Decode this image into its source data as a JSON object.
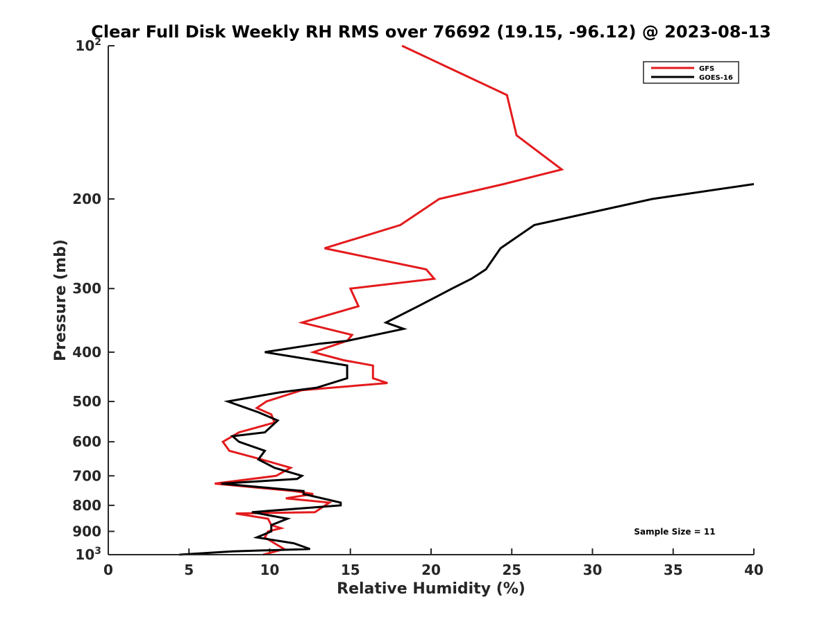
{
  "chart_data": {
    "type": "line",
    "title": "Clear Full Disk Weekly RH RMS over 76692 (19.15, -96.12) @ 2023-08-13",
    "xlabel": "Relative Humidity (%)",
    "ylabel": "Pressure (mb)",
    "xlim": [
      0,
      40
    ],
    "ylim": [
      1000,
      100
    ],
    "yscale": "log",
    "x_ticks": [
      0,
      5,
      10,
      15,
      20,
      25,
      30,
      35,
      40
    ],
    "y_ticks": [
      {
        "value": 100,
        "label": "10",
        "sup": "2"
      },
      {
        "value": 200,
        "label": "200"
      },
      {
        "value": 300,
        "label": "300"
      },
      {
        "value": 400,
        "label": "400"
      },
      {
        "value": 500,
        "label": "500"
      },
      {
        "value": 600,
        "label": "600"
      },
      {
        "value": 700,
        "label": "700"
      },
      {
        "value": 800,
        "label": "800"
      },
      {
        "value": 900,
        "label": "900"
      },
      {
        "value": 1000,
        "label": "10",
        "sup": "3"
      }
    ],
    "legend_position": "top-right",
    "series": [
      {
        "name": "GFS",
        "color": "#e31a1c",
        "points": [
          [
            18.2,
            100
          ],
          [
            24.7,
            125
          ],
          [
            25.3,
            150
          ],
          [
            28.1,
            175
          ],
          [
            24.5,
            187
          ],
          [
            20.5,
            200
          ],
          [
            18.1,
            225
          ],
          [
            13.4,
            250
          ],
          [
            19.7,
            275
          ],
          [
            20.2,
            287
          ],
          [
            15.0,
            300
          ],
          [
            15.5,
            325
          ],
          [
            12.0,
            350
          ],
          [
            15.1,
            370
          ],
          [
            14.8,
            380
          ],
          [
            12.7,
            400
          ],
          [
            14.6,
            415
          ],
          [
            16.4,
            425
          ],
          [
            16.4,
            450
          ],
          [
            17.3,
            460
          ],
          [
            12.0,
            475
          ],
          [
            9.8,
            500
          ],
          [
            9.2,
            515
          ],
          [
            10.1,
            530
          ],
          [
            10.3,
            550
          ],
          [
            8.1,
            575
          ],
          [
            7.1,
            600
          ],
          [
            7.5,
            625
          ],
          [
            9.5,
            650
          ],
          [
            11.3,
            675
          ],
          [
            10.4,
            700
          ],
          [
            6.6,
            725
          ],
          [
            11.5,
            750
          ],
          [
            12.7,
            760
          ],
          [
            11.0,
            775
          ],
          [
            13.7,
            790
          ],
          [
            12.8,
            825
          ],
          [
            7.9,
            830
          ],
          [
            9.9,
            850
          ],
          [
            10.1,
            875
          ],
          [
            10.7,
            887
          ],
          [
            9.9,
            900
          ],
          [
            9.7,
            925
          ],
          [
            10.3,
            950
          ],
          [
            10.9,
            975
          ],
          [
            9.6,
            1000
          ]
        ]
      },
      {
        "name": "GOES-16",
        "color": "#000000",
        "points": [
          [
            40.0,
            187
          ],
          [
            33.7,
            200
          ],
          [
            26.4,
            225
          ],
          [
            24.3,
            250
          ],
          [
            23.4,
            275
          ],
          [
            22.5,
            287
          ],
          [
            21.3,
            300
          ],
          [
            19.2,
            325
          ],
          [
            17.2,
            350
          ],
          [
            18.3,
            360
          ],
          [
            14.8,
            380
          ],
          [
            13.1,
            385
          ],
          [
            9.7,
            400
          ],
          [
            14.8,
            425
          ],
          [
            14.8,
            450
          ],
          [
            12.9,
            470
          ],
          [
            10.6,
            480
          ],
          [
            7.4,
            500
          ],
          [
            9.3,
            525
          ],
          [
            10.5,
            545
          ],
          [
            9.7,
            575
          ],
          [
            7.7,
            585
          ],
          [
            8.1,
            600
          ],
          [
            9.7,
            625
          ],
          [
            9.3,
            650
          ],
          [
            10.3,
            675
          ],
          [
            12.0,
            700
          ],
          [
            11.7,
            710
          ],
          [
            7.0,
            725
          ],
          [
            12.1,
            750
          ],
          [
            12.1,
            760
          ],
          [
            14.4,
            790
          ],
          [
            14.4,
            800
          ],
          [
            8.9,
            825
          ],
          [
            11.1,
            850
          ],
          [
            10.1,
            875
          ],
          [
            10.1,
            900
          ],
          [
            9.2,
            925
          ],
          [
            11.5,
            950
          ],
          [
            12.5,
            975
          ],
          [
            7.7,
            985
          ],
          [
            4.4,
            1000
          ]
        ]
      }
    ],
    "annotations": [
      {
        "text": "Sample Size = 11",
        "position": "bottom-right"
      }
    ]
  }
}
